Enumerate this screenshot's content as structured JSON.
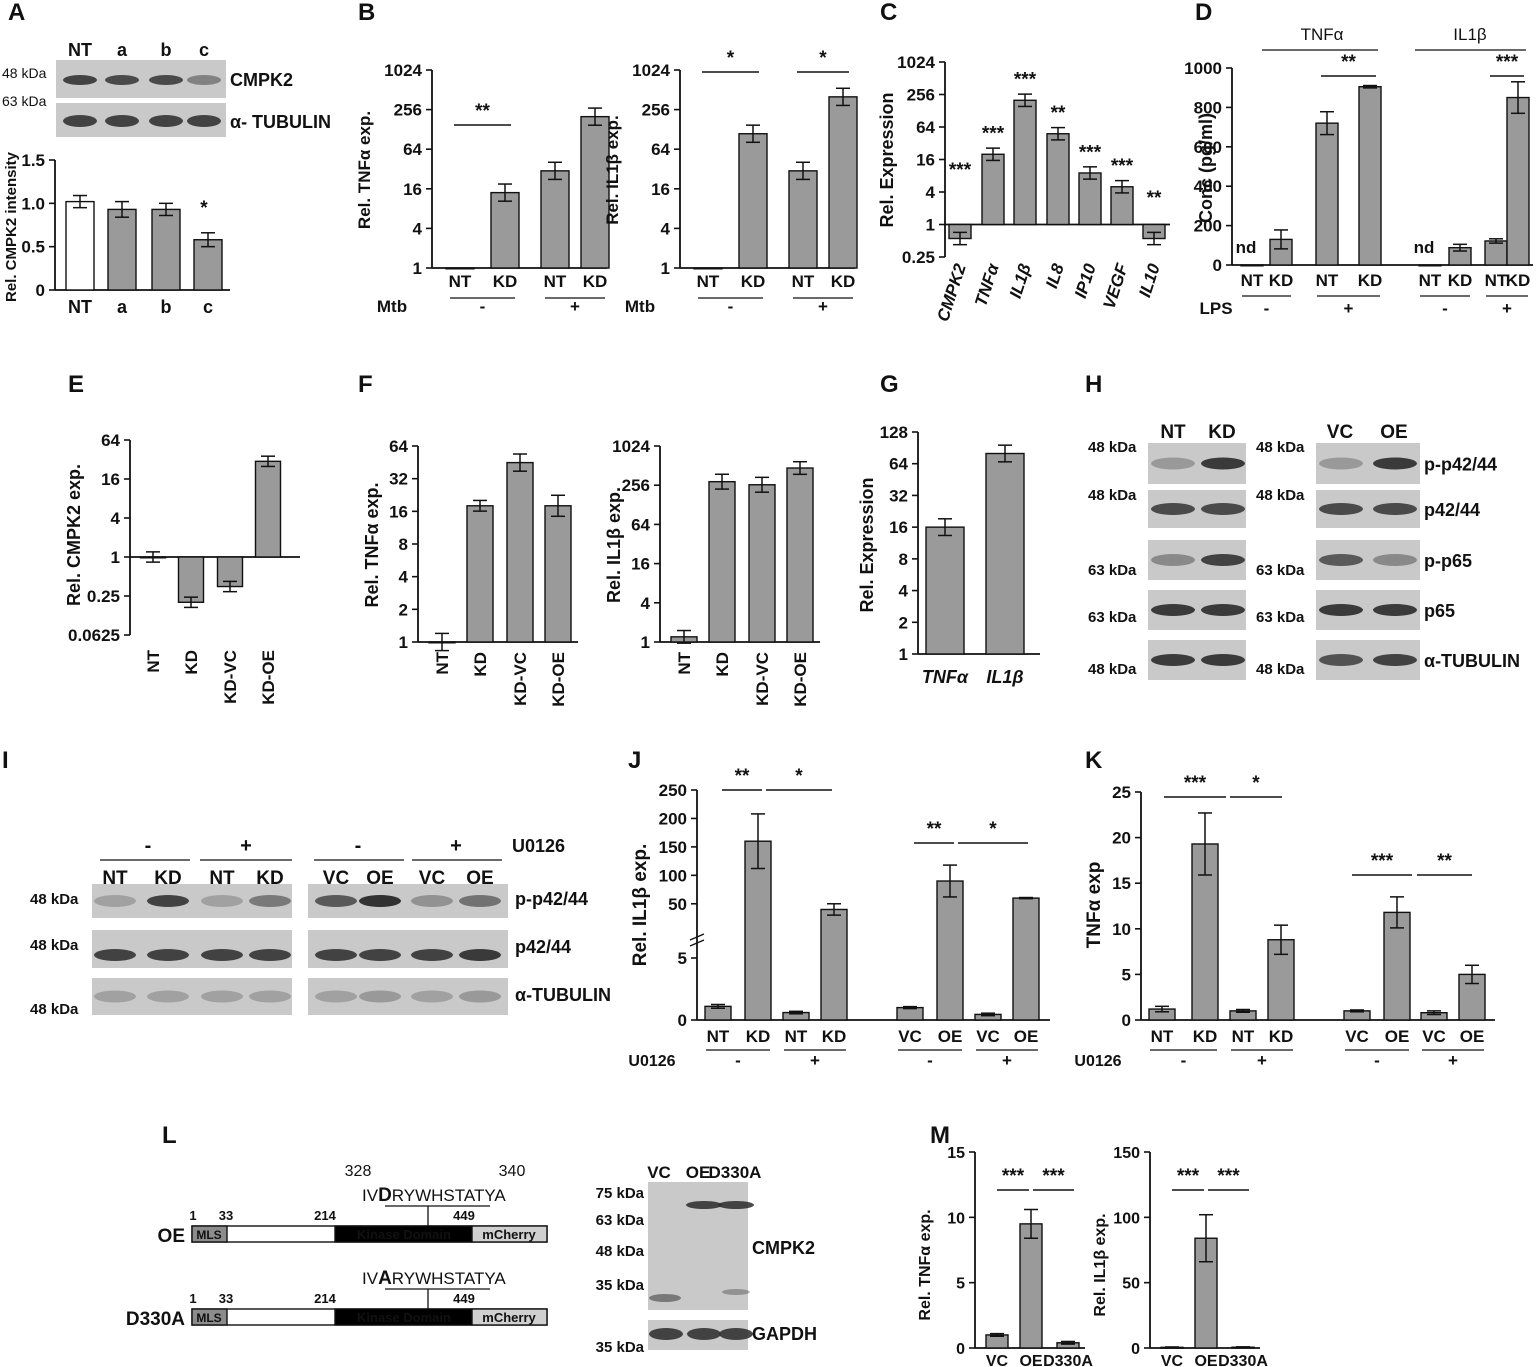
{
  "figure": {
    "panel_letters": [
      "A",
      "B",
      "C",
      "D",
      "E",
      "F",
      "G",
      "H",
      "I",
      "J",
      "K",
      "L",
      "M"
    ],
    "colors": {
      "bar": "#9a9a9a",
      "bar_white": "#ffffff",
      "blot_bg": "#c9c9c9",
      "band": "#2a2a2a",
      "black": "#111111",
      "mcherry": "#d0d0d0",
      "mls": "#8c8c8c"
    }
  },
  "blots": {
    "A": {
      "lanes": [
        "NT",
        "a",
        "b",
        "c"
      ],
      "proteins": [
        "CMPK2",
        "α- TUBULIN"
      ],
      "mw": [
        "48 kDa",
        "63 kDa"
      ],
      "intensity": {
        "CMPK2": [
          0.85,
          0.8,
          0.8,
          0.45
        ],
        "TUBULIN": [
          0.85,
          0.85,
          0.85,
          0.85
        ]
      }
    },
    "H": {
      "left_lanes": [
        "NT",
        "KD"
      ],
      "right_lanes": [
        "VC",
        "OE"
      ],
      "proteins": [
        "p-p42/44",
        "p42/44",
        "p-p65",
        "p65",
        "α-TUBULIN"
      ],
      "mw": [
        "48 kDa",
        "48 kDa",
        "63 kDa",
        "63 kDa",
        "48 kDa"
      ]
    },
    "I": {
      "treatment": "U0126",
      "signs": [
        "-",
        "+",
        "-",
        "+"
      ],
      "lanes": [
        "NT",
        "KD",
        "NT",
        "KD",
        "VC",
        "OE",
        "VC",
        "OE"
      ],
      "proteins": [
        "p-p42/44",
        "p42/44",
        "α-TUBULIN"
      ],
      "mw": [
        "48 kDa",
        "48 kDa",
        "48 kDa"
      ]
    },
    "L": {
      "lanes": [
        "VC",
        "OE",
        "D330A"
      ],
      "proteins": [
        "CMPK2",
        "GAPDH"
      ],
      "mw": [
        "75 kDa",
        "63 kDa",
        "48 kDa",
        "35 kDa",
        "35 kDa"
      ]
    }
  },
  "diagram_L": {
    "oe_label": "OE",
    "mut_label": "D330A",
    "positions": [
      "1",
      "33",
      "214",
      "449"
    ],
    "seq_pos": [
      "328",
      "340"
    ],
    "wt_seq": {
      "pre": "IV",
      "res": "D",
      "post": "RYWHSTATYA"
    },
    "mut_seq": {
      "pre": "IV",
      "res": "A",
      "post": "RYWHSTATYA"
    },
    "domains": [
      "MLS",
      "Kinase Domain",
      "mCherry"
    ]
  },
  "chart_data": [
    {
      "panel": "A",
      "type": "bar",
      "ylabel": "Rel. CMPK2 intensity",
      "categories": [
        "NT",
        "a",
        "b",
        "c"
      ],
      "values": [
        1.02,
        0.93,
        0.93,
        0.58
      ],
      "errors": [
        0.07,
        0.09,
        0.07,
        0.08
      ],
      "ylim": [
        0,
        1.5
      ],
      "yticks": [
        "0",
        "0.5",
        "1.0",
        "1.5"
      ],
      "bar_colors": [
        "white",
        "grey",
        "grey",
        "grey"
      ],
      "annotations": [
        "",
        "",
        "",
        "*"
      ]
    },
    {
      "panel": "B1",
      "type": "bar",
      "yscale": "log2",
      "ylabel": "Rel. TNFα exp.",
      "categories": [
        "NT",
        "KD",
        "NT",
        "KD"
      ],
      "values": [
        1,
        14,
        30,
        200
      ],
      "group_label": "Mtb",
      "groups": [
        "-",
        "+"
      ],
      "yticks": [
        "1",
        "4",
        "16",
        "64",
        "256",
        "1024"
      ],
      "sig": [
        {
          "a": 0,
          "b": 1,
          "text": "**"
        }
      ]
    },
    {
      "panel": "B2",
      "type": "bar",
      "yscale": "log2",
      "ylabel": "Rel. IL1β exp.",
      "categories": [
        "NT",
        "KD",
        "NT",
        "KD"
      ],
      "values": [
        1,
        110,
        30,
        400
      ],
      "group_label": "Mtb",
      "groups": [
        "-",
        "+"
      ],
      "yticks": [
        "1",
        "4",
        "16",
        "64",
        "256",
        "1024"
      ],
      "sig": [
        {
          "a": 0,
          "b": 1,
          "text": "*"
        },
        {
          "a": 2,
          "b": 3,
          "text": "*"
        }
      ]
    },
    {
      "panel": "C",
      "type": "bar",
      "yscale": "log2",
      "ylabel": "Rel. Expression",
      "categories": [
        "CMPK2",
        "TNFα",
        "IL1β",
        "IL8",
        "IP10",
        "VEGF",
        "IL10"
      ],
      "values": [
        0.55,
        20,
        200,
        48,
        9,
        5,
        0.55
      ],
      "yticks": [
        "0.25",
        "1",
        "4",
        "16",
        "64",
        "256",
        "1024"
      ],
      "annotations": [
        "***",
        "***",
        "***",
        "**",
        "***",
        "***",
        "**"
      ]
    },
    {
      "panel": "D",
      "type": "bar",
      "ylabel": "Conc (pg/ml)",
      "titles": [
        "TNFα",
        "IL1β"
      ],
      "series": [
        {
          "name": "TNFα",
          "values": [
            0,
            130,
            720,
            905
          ]
        },
        {
          "name": "IL1β",
          "values": [
            0,
            88,
            122,
            850
          ]
        }
      ],
      "categories": [
        "NT",
        "KD",
        "NT",
        "KD"
      ],
      "group_label": "LPS",
      "groups": [
        "-",
        "+"
      ],
      "ylim": [
        0,
        1000
      ],
      "yticks": [
        "0",
        "200",
        "400",
        "600",
        "800",
        "1000"
      ],
      "nd": "nd",
      "sig": [
        "**",
        "***"
      ]
    },
    {
      "panel": "E",
      "type": "bar",
      "yscale": "log2",
      "ylabel": "Rel. CMPK2 exp.",
      "categories": [
        "NT",
        "KD",
        "KD-VC",
        "KD-OE"
      ],
      "values": [
        1,
        0.2,
        0.35,
        30
      ],
      "yticks": [
        "0.0625",
        "0.25",
        "1",
        "4",
        "16",
        "64"
      ]
    },
    {
      "panel": "F1",
      "type": "bar",
      "yscale": "log2",
      "ylabel": "Rel. TNFα exp.",
      "categories": [
        "NT",
        "KD",
        "KD-VC",
        "KD-OE"
      ],
      "values": [
        1,
        18,
        45,
        18
      ],
      "yticks": [
        "1",
        "2",
        "4",
        "8",
        "16",
        "32",
        "64"
      ]
    },
    {
      "panel": "F2",
      "type": "bar",
      "yscale": "log2",
      "ylabel": "Rel. IL1β exp.",
      "categories": [
        "NT",
        "KD",
        "KD-VC",
        "KD-OE"
      ],
      "values": [
        1.2,
        290,
        260,
        470
      ],
      "yticks": [
        "1",
        "4",
        "16",
        "64",
        "256",
        "1024"
      ]
    },
    {
      "panel": "G",
      "type": "bar",
      "yscale": "log2",
      "ylabel": "Rel. Expression",
      "categories": [
        "TNFα",
        "IL1β"
      ],
      "values": [
        16,
        80
      ],
      "yticks": [
        "1",
        "2",
        "4",
        "8",
        "16",
        "32",
        "64",
        "128"
      ]
    },
    {
      "panel": "J",
      "type": "bar",
      "ylabel": "Rel. IL1β exp.",
      "categories": [
        "NT",
        "KD",
        "NT",
        "KD",
        "VC",
        "OE",
        "VC",
        "OE"
      ],
      "values": [
        1.1,
        160,
        0.6,
        40,
        1.0,
        90,
        0.45,
        60
      ],
      "treatment": "U0126",
      "groups": [
        "-",
        "+",
        "-",
        "+"
      ],
      "yticks": [
        "0",
        "5",
        "50",
        "100",
        "150",
        "200",
        "250"
      ],
      "sig": [
        "**",
        "*",
        "**",
        "*"
      ]
    },
    {
      "panel": "K",
      "type": "bar",
      "ylabel": "TNFα exp",
      "categories": [
        "NT",
        "KD",
        "NT",
        "KD",
        "VC",
        "OE",
        "VC",
        "OE"
      ],
      "values": [
        1.2,
        19.3,
        1.0,
        8.8,
        1.0,
        11.8,
        0.8,
        5.0
      ],
      "treatment": "U0126",
      "groups": [
        "-",
        "+",
        "-",
        "+"
      ],
      "ylim": [
        0,
        25
      ],
      "yticks": [
        "0",
        "5",
        "10",
        "15",
        "20",
        "25"
      ],
      "sig": [
        "***",
        "*",
        "***",
        "**"
      ]
    },
    {
      "panel": "M1",
      "type": "bar",
      "ylabel": "Rel. TNFα exp.",
      "categories": [
        "VC",
        "OE",
        "D330A"
      ],
      "values": [
        1.0,
        9.5,
        0.4
      ],
      "ylim": [
        0,
        15
      ],
      "yticks": [
        "0",
        "5",
        "10",
        "15"
      ],
      "sig": [
        "***",
        "***"
      ]
    },
    {
      "panel": "M2",
      "type": "bar",
      "ylabel": "Rel. IL1β exp.",
      "categories": [
        "VC",
        "OE",
        "D330A"
      ],
      "values": [
        0.5,
        84,
        0.6
      ],
      "ylim": [
        0,
        150
      ],
      "yticks": [
        "0",
        "50",
        "100",
        "150"
      ],
      "sig": [
        "***",
        "***"
      ]
    }
  ]
}
